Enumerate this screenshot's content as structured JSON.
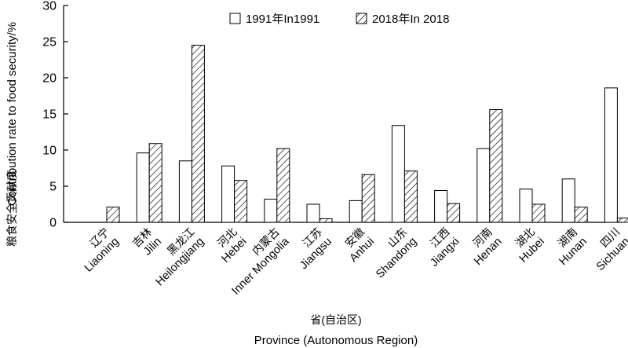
{
  "chart_data": {
    "type": "bar",
    "ylabel_cn": "粮食安全贡献度",
    "ylabel_en": "Contribution rate to food security/%",
    "xlabel_cn": "省(自治区)",
    "xlabel_en": "Province (Autonomous Region)",
    "ylim": [
      0,
      30
    ],
    "yticks": [
      0,
      5,
      10,
      15,
      20,
      25,
      30
    ],
    "legend_position": "top-center",
    "grid": false,
    "categories": [
      {
        "cn": "辽宁",
        "en": "Liaoning"
      },
      {
        "cn": "吉林",
        "en": "Jilin"
      },
      {
        "cn": "黑龙江",
        "en": "Heilongjiang"
      },
      {
        "cn": "河北",
        "en": "Hebei"
      },
      {
        "cn": "内蒙古",
        "en": "Inner Mongolia"
      },
      {
        "cn": "江苏",
        "en": "Jiangsu"
      },
      {
        "cn": "安徽",
        "en": "Anhui"
      },
      {
        "cn": "山东",
        "en": "Shandong"
      },
      {
        "cn": "江西",
        "en": "Jiangxi"
      },
      {
        "cn": "河南",
        "en": "Henan"
      },
      {
        "cn": "湖北",
        "en": "Hubei"
      },
      {
        "cn": "湖南",
        "en": "Hunan"
      },
      {
        "cn": "四川",
        "en": "Sichuan"
      }
    ],
    "series": [
      {
        "name": "1991年In1991",
        "fill": "open",
        "values": [
          0,
          9.6,
          8.5,
          7.8,
          3.2,
          2.5,
          3.0,
          13.4,
          4.4,
          10.2,
          4.6,
          6.0,
          18.6
        ]
      },
      {
        "name": "2018年In 2018",
        "fill": "hatched",
        "values": [
          2.1,
          10.9,
          24.5,
          5.8,
          10.2,
          0.5,
          6.6,
          7.1,
          2.6,
          15.6,
          2.5,
          2.1,
          0.6
        ]
      }
    ]
  }
}
